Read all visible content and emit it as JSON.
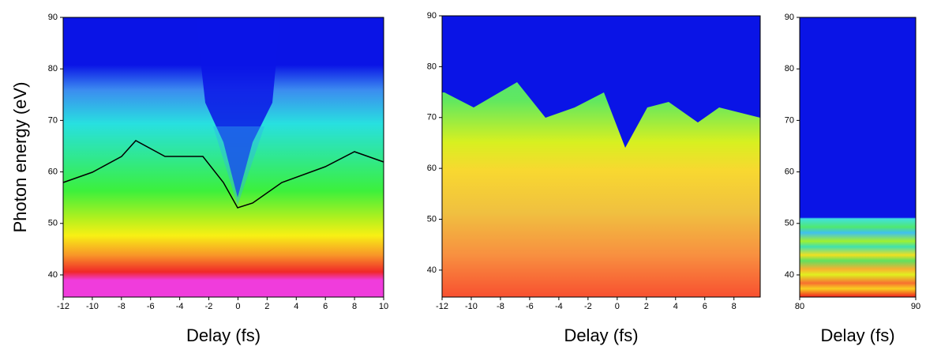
{
  "chart_data": [
    {
      "type": "heatmap",
      "xlabel": "Delay (fs)",
      "ylabel": "Photon energy (eV)",
      "xlim": [
        -12,
        10
      ],
      "ylim": [
        35.7,
        90
      ],
      "xticks": [
        -12,
        -10,
        -8,
        -6,
        -4,
        -2,
        0,
        2,
        4,
        6,
        8,
        10
      ],
      "yticks": [
        40,
        50,
        60,
        70,
        80,
        90
      ]
    },
    {
      "type": "heatmap",
      "xlabel": "Delay (fs)",
      "xlim": [
        -12,
        9.8
      ],
      "ylim": [
        34.7,
        90
      ],
      "xticks": [
        -12,
        -10,
        -8,
        -6,
        -4,
        -2,
        0,
        2,
        4,
        6,
        8
      ],
      "yticks": [
        40,
        50,
        60,
        70,
        80,
        90
      ]
    },
    {
      "type": "heatmap",
      "xlabel": "Delay (fs)",
      "xlim": [
        80,
        90
      ],
      "ylim": [
        35.7,
        90
      ],
      "xticks": [
        80,
        90
      ],
      "yticks": [
        40,
        50,
        60,
        70,
        80,
        90
      ]
    }
  ]
}
